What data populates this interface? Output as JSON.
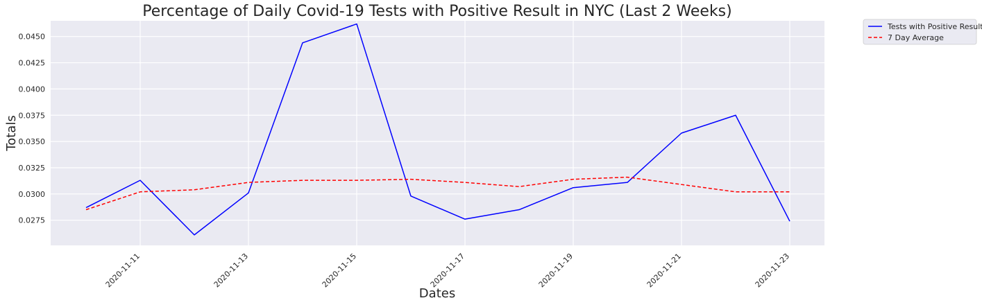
{
  "chart_data": {
    "type": "line",
    "title": "Percentage of Daily Covid-19 Tests with Positive Result in NYC (Last 2 Weeks)",
    "xlabel": "Dates",
    "ylabel": "Totals",
    "x": [
      "2020-11-10",
      "2020-11-11",
      "2020-11-12",
      "2020-11-13",
      "2020-11-14",
      "2020-11-15",
      "2020-11-16",
      "2020-11-17",
      "2020-11-18",
      "2020-11-19",
      "2020-11-20",
      "2020-11-21",
      "2020-11-22",
      "2020-11-23"
    ],
    "x_tick_labels": [
      "2020-11-11",
      "2020-11-13",
      "2020-11-15",
      "2020-11-17",
      "2020-11-19",
      "2020-11-21",
      "2020-11-23"
    ],
    "y_ticks": [
      "0.0275",
      "0.0300",
      "0.0325",
      "0.0350",
      "0.0375",
      "0.0400",
      "0.0425",
      "0.0450"
    ],
    "ylim": [
      0.0251,
      0.0465
    ],
    "grid": true,
    "legend_placement": "outside top-right",
    "background_color": "#eaeaf2",
    "series": [
      {
        "name": "Tests with Positive Result",
        "color": "#0000ff",
        "style": "solid",
        "values": [
          0.0287,
          0.0313,
          0.0261,
          0.0301,
          0.0444,
          0.0462,
          0.0298,
          0.0276,
          0.0285,
          0.0306,
          0.0311,
          0.0358,
          0.0375,
          0.0274
        ]
      },
      {
        "name": "7 Day Average",
        "color": "#ff0000",
        "style": "dashed",
        "values": [
          0.0285,
          0.0302,
          0.0304,
          0.0311,
          0.0313,
          0.0313,
          0.0314,
          0.0311,
          0.0307,
          0.0314,
          0.0316,
          0.0309,
          0.0302,
          0.0302
        ]
      }
    ]
  }
}
